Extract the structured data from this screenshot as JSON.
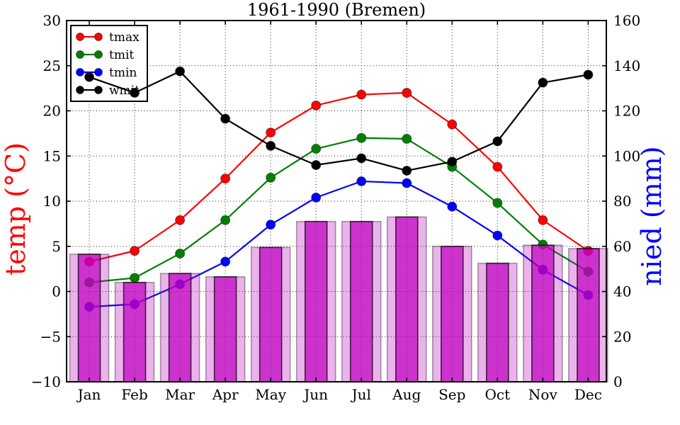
{
  "figure": {
    "title": "1961-1990 (Bremen)"
  },
  "chart_data": {
    "type": "line+bar",
    "title": "1961-1990 (Bremen)",
    "categories": [
      "Jan",
      "Feb",
      "Mar",
      "Apr",
      "May",
      "Jun",
      "Jul",
      "Aug",
      "Sep",
      "Oct",
      "Nov",
      "Dec"
    ],
    "left_axis": {
      "label": "temp (°C)",
      "color": "#ff0000",
      "min": -10,
      "max": 30,
      "ticks": [
        30,
        25,
        20,
        15,
        10,
        5,
        0,
        -5,
        -10
      ]
    },
    "right_axis": {
      "label": "nied (mm)",
      "color": "#0000ff",
      "min": 0,
      "max": 160,
      "ticks": [
        160,
        140,
        120,
        100,
        80,
        60,
        40,
        20,
        0
      ]
    },
    "grid": true,
    "legend_position": "upper left",
    "legend_entries": [
      "tmax",
      "tmit",
      "tmin",
      "wmit"
    ],
    "series": [
      {
        "name": "tmax",
        "type": "line",
        "axis": "left",
        "color": "#ff0000",
        "values": [
          3.3,
          4.5,
          7.9,
          12.5,
          17.6,
          20.6,
          21.8,
          22.0,
          18.5,
          13.8,
          7.9,
          4.5
        ]
      },
      {
        "name": "tmit",
        "type": "line",
        "axis": "left",
        "color": "#008000",
        "values": [
          1.0,
          1.5,
          4.2,
          7.9,
          12.6,
          15.8,
          17.0,
          16.9,
          13.8,
          9.8,
          5.2,
          2.2
        ]
      },
      {
        "name": "tmin",
        "type": "line",
        "axis": "left",
        "color": "#0000ff",
        "values": [
          -1.7,
          -1.4,
          0.8,
          3.3,
          7.4,
          10.4,
          12.2,
          12.0,
          9.4,
          6.2,
          2.4,
          -0.4
        ]
      },
      {
        "name": "wmit",
        "type": "line",
        "axis": "right",
        "color": "#000000",
        "values": [
          135,
          128,
          137.5,
          116.5,
          104.5,
          96,
          99,
          93.5,
          97.5,
          106.5,
          132.5,
          136
        ]
      }
    ],
    "bars": {
      "name": "nied",
      "type": "bar",
      "axis": "right",
      "fill_color": "#bf00bf",
      "wide_opacity": 0.3,
      "narrow_opacity": 0.72,
      "values": [
        56.5,
        44,
        48,
        46.5,
        59.5,
        71,
        71,
        73,
        60,
        52.5,
        60.5,
        59
      ]
    }
  }
}
